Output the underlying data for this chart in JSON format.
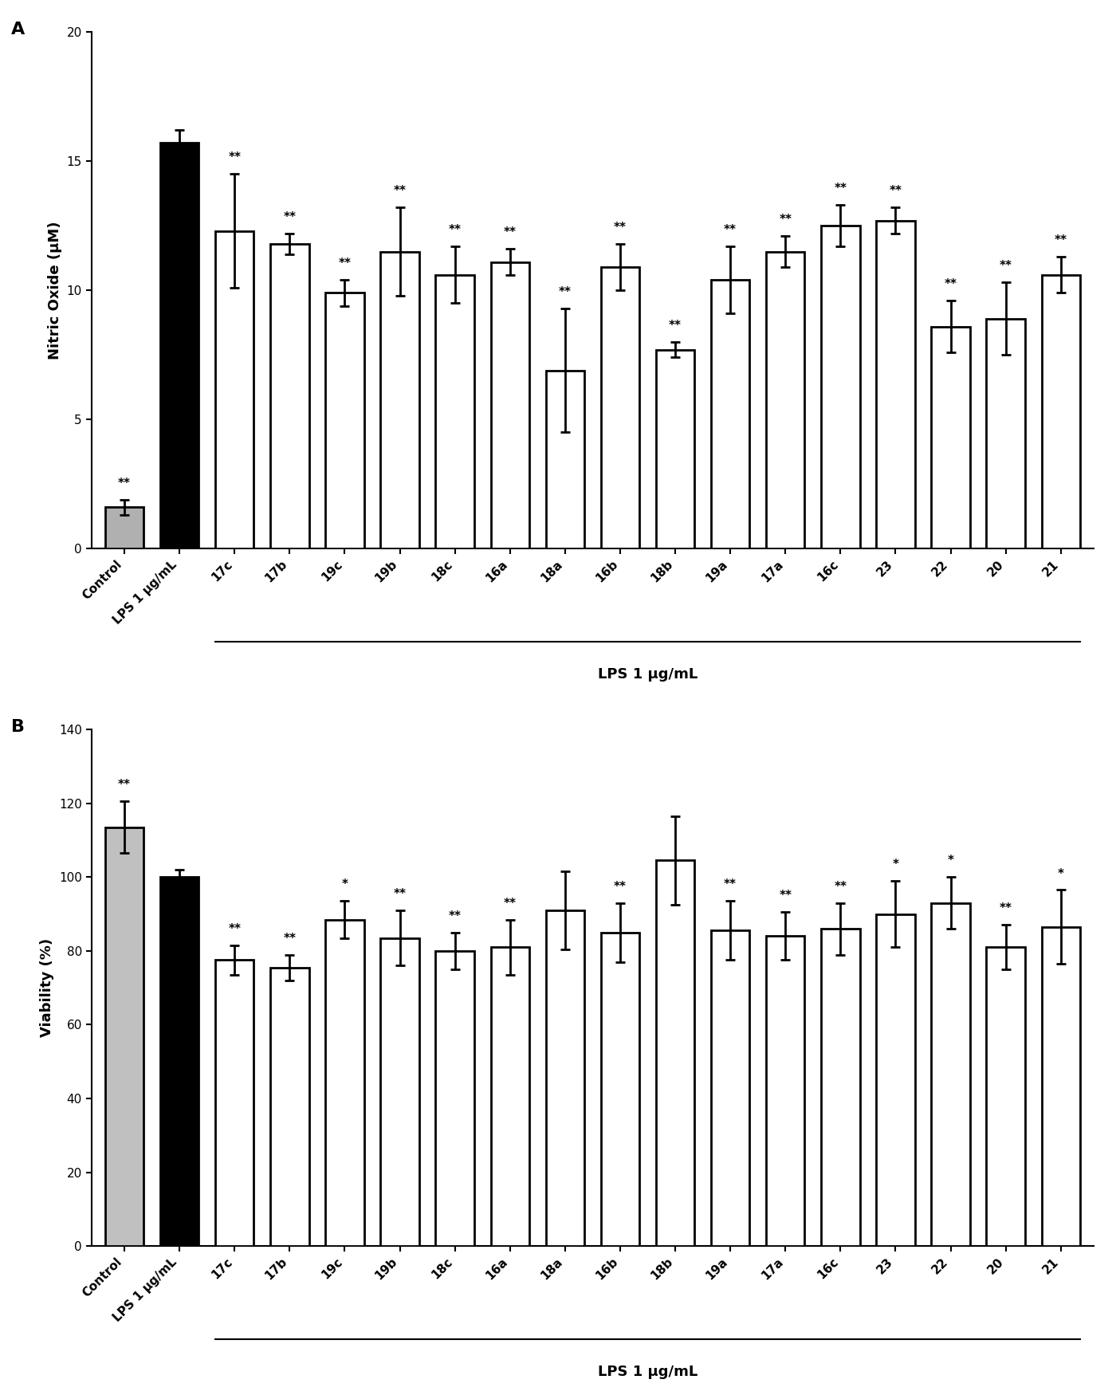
{
  "panel_A": {
    "title_label": "A",
    "ylabel": "Nitric Oxide (μM)",
    "xlabel_group": "LPS 1 μg/mL",
    "ylim": [
      0,
      20
    ],
    "yticks": [
      0,
      5,
      10,
      15,
      20
    ],
    "categories": [
      "Control",
      "LPS 1 μg/mL",
      "17c",
      "17b",
      "19c",
      "19b",
      "18c",
      "16a",
      "18a",
      "16b",
      "18b",
      "19a",
      "17a",
      "16c",
      "23",
      "22",
      "20",
      "21"
    ],
    "values": [
      1.6,
      15.7,
      12.3,
      11.8,
      9.9,
      11.5,
      10.6,
      11.1,
      6.9,
      10.9,
      7.7,
      10.4,
      11.5,
      12.5,
      12.7,
      8.6,
      8.9,
      10.6
    ],
    "errors": [
      0.3,
      0.5,
      2.2,
      0.4,
      0.5,
      1.7,
      1.1,
      0.5,
      2.4,
      0.9,
      0.3,
      1.3,
      0.6,
      0.8,
      0.5,
      1.0,
      1.4,
      0.7
    ],
    "sig": [
      "**",
      "",
      "**",
      "**",
      "**",
      "**",
      "**",
      "**",
      "**",
      "**",
      "**",
      "**",
      "**",
      "**",
      "**",
      "**",
      "**",
      "**"
    ],
    "colors": [
      "#b0b0b0",
      "#000000",
      "#ffffff",
      "#ffffff",
      "#ffffff",
      "#ffffff",
      "#ffffff",
      "#ffffff",
      "#ffffff",
      "#ffffff",
      "#ffffff",
      "#ffffff",
      "#ffffff",
      "#ffffff",
      "#ffffff",
      "#ffffff",
      "#ffffff",
      "#ffffff"
    ],
    "edge_colors": [
      "#000000",
      "#000000",
      "#000000",
      "#000000",
      "#000000",
      "#000000",
      "#000000",
      "#000000",
      "#000000",
      "#000000",
      "#000000",
      "#000000",
      "#000000",
      "#000000",
      "#000000",
      "#000000",
      "#000000",
      "#000000"
    ]
  },
  "panel_B": {
    "title_label": "B",
    "ylabel": "Viability (%)",
    "xlabel_group": "LPS 1 μg/mL",
    "ylim": [
      0,
      140
    ],
    "yticks": [
      0,
      20,
      40,
      60,
      80,
      100,
      120,
      140
    ],
    "categories": [
      "Control",
      "LPS 1 μg/mL",
      "17c",
      "17b",
      "19c",
      "19b",
      "18c",
      "16a",
      "18a",
      "16b",
      "18b",
      "19a",
      "17a",
      "16c",
      "23",
      "22",
      "20",
      "21"
    ],
    "values": [
      113.5,
      100.0,
      77.5,
      75.5,
      88.5,
      83.5,
      80.0,
      81.0,
      91.0,
      85.0,
      104.5,
      85.5,
      84.0,
      86.0,
      90.0,
      93.0,
      81.0,
      86.5
    ],
    "errors": [
      7.0,
      2.0,
      4.0,
      3.5,
      5.0,
      7.5,
      5.0,
      7.5,
      10.5,
      8.0,
      12.0,
      8.0,
      6.5,
      7.0,
      9.0,
      7.0,
      6.0,
      10.0
    ],
    "sig": [
      "**",
      "",
      "**",
      "**",
      "*",
      "**",
      "**",
      "**",
      "",
      "**",
      "",
      "**",
      "**",
      "**",
      "*",
      "*",
      "**",
      "*"
    ],
    "colors": [
      "#c0c0c0",
      "#000000",
      "#ffffff",
      "#ffffff",
      "#ffffff",
      "#ffffff",
      "#ffffff",
      "#ffffff",
      "#ffffff",
      "#ffffff",
      "#ffffff",
      "#ffffff",
      "#ffffff",
      "#ffffff",
      "#ffffff",
      "#ffffff",
      "#ffffff",
      "#ffffff"
    ],
    "edge_colors": [
      "#000000",
      "#000000",
      "#000000",
      "#000000",
      "#000000",
      "#000000",
      "#000000",
      "#000000",
      "#000000",
      "#000000",
      "#000000",
      "#000000",
      "#000000",
      "#000000",
      "#000000",
      "#000000",
      "#000000",
      "#000000"
    ]
  },
  "figure_width": 14,
  "figure_height": 17.5,
  "bar_width": 0.7,
  "fontsize_axis_label": 13,
  "fontsize_tick": 11,
  "fontsize_sig": 11,
  "fontsize_panel_label": 16,
  "linewidth_bar": 2.0,
  "linewidth_axes": 1.5
}
